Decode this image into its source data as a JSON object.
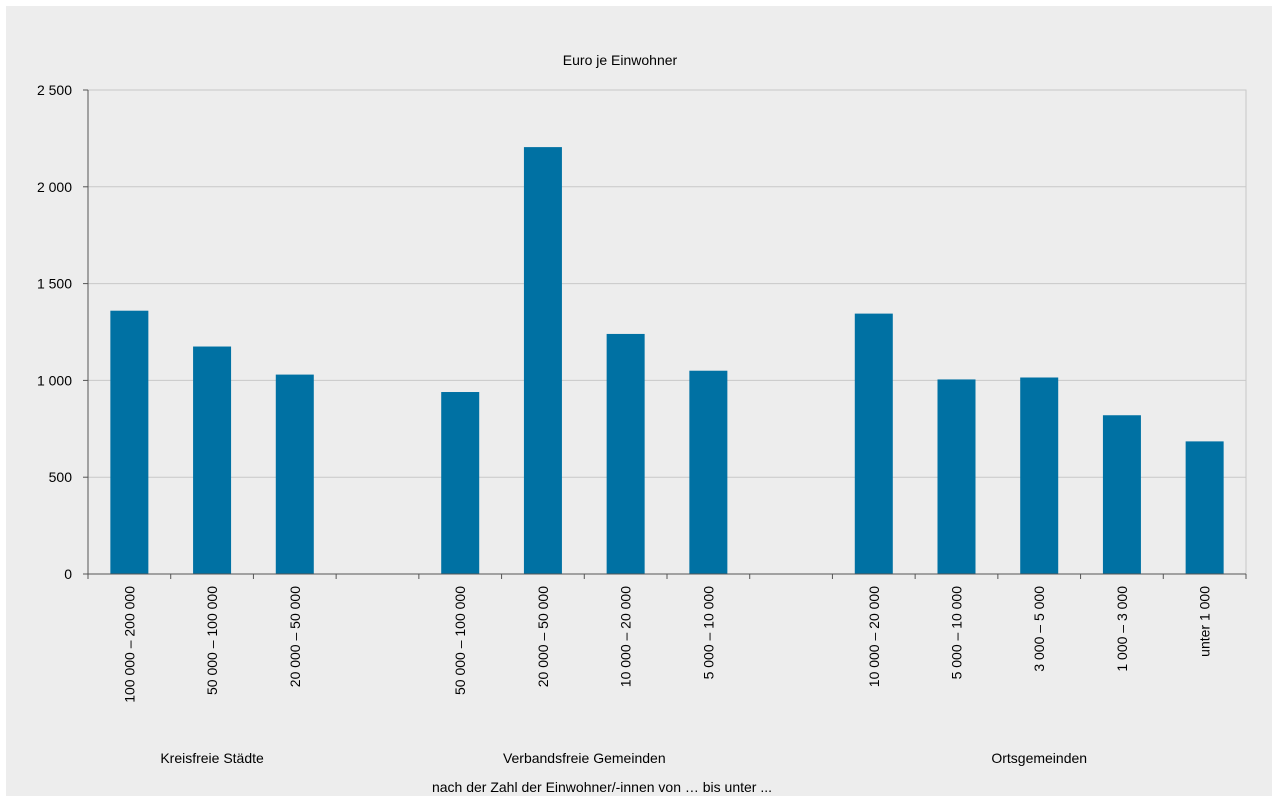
{
  "chart_data": {
    "type": "bar",
    "title": "Euro je Einwohner",
    "xlabel": "nach der Zahl der Einwohner/-innen von … bis unter ...",
    "ylabel": "",
    "ylim": [
      0,
      2500
    ],
    "yticks": [
      0,
      500,
      1000,
      1500,
      2000,
      2500
    ],
    "ytick_labels": [
      "0",
      "500",
      "1 000",
      "1 500",
      "2 000",
      "2 500"
    ],
    "grid": true,
    "bar_color": "#0071a3",
    "groups": [
      {
        "label": "Kreisfreie Städte",
        "start": 0,
        "end": 2
      },
      {
        "label": "Verbandsfreie Gemeinden",
        "start": 4,
        "end": 7
      },
      {
        "label": "Ortsgemeinden",
        "start": 9,
        "end": 13
      }
    ],
    "categories": [
      "100 000 – 200 000",
      "50 000 – 100 000",
      "20 000 – 50 000",
      "",
      "50 000 – 100 000",
      "20 000 – 50 000",
      "10 000 – 20 000",
      "5 000 – 10 000",
      "",
      "10 000 – 20 000",
      "5 000 – 10 000",
      "3 000 – 5 000",
      "1 000 – 3 000",
      "unter 1 000"
    ],
    "values": [
      1360,
      1175,
      1030,
      null,
      940,
      2205,
      1240,
      1050,
      null,
      1345,
      1005,
      1015,
      820,
      685
    ]
  }
}
